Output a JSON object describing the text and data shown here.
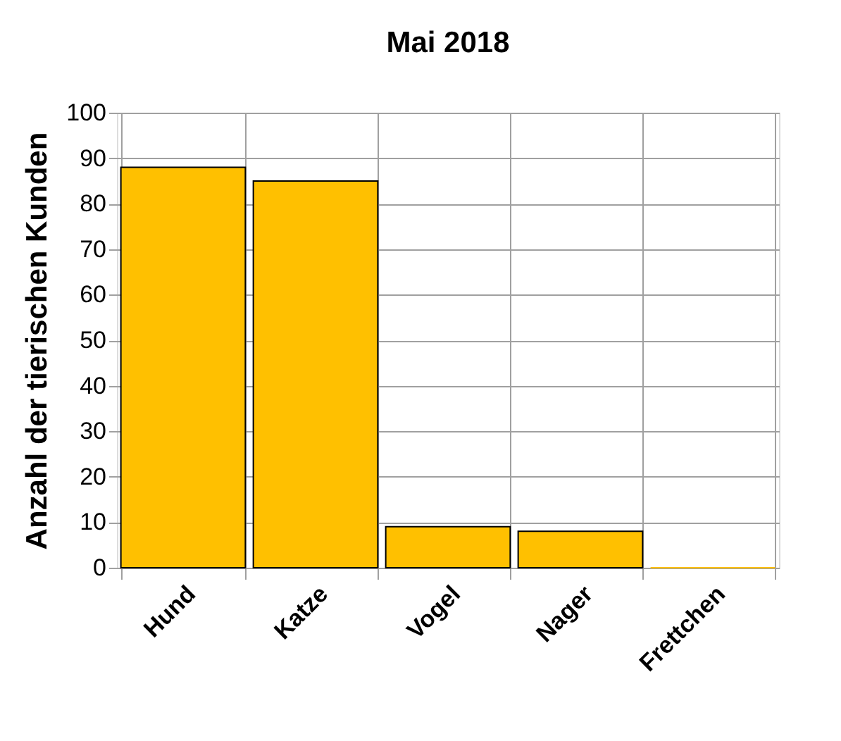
{
  "chart_data": {
    "type": "bar",
    "title": "Mai 2018",
    "ylabel": "Anzahl der tierischen Kunden",
    "categories": [
      "Hund",
      "Katze",
      "Vogel",
      "Nager",
      "Frettchen"
    ],
    "values": [
      88,
      85,
      9,
      8,
      0
    ],
    "color": "#ffc000",
    "ylim": [
      0,
      100
    ],
    "yticks": [
      0,
      10,
      20,
      30,
      40,
      50,
      60,
      70,
      80,
      90,
      100
    ],
    "grid": true
  }
}
